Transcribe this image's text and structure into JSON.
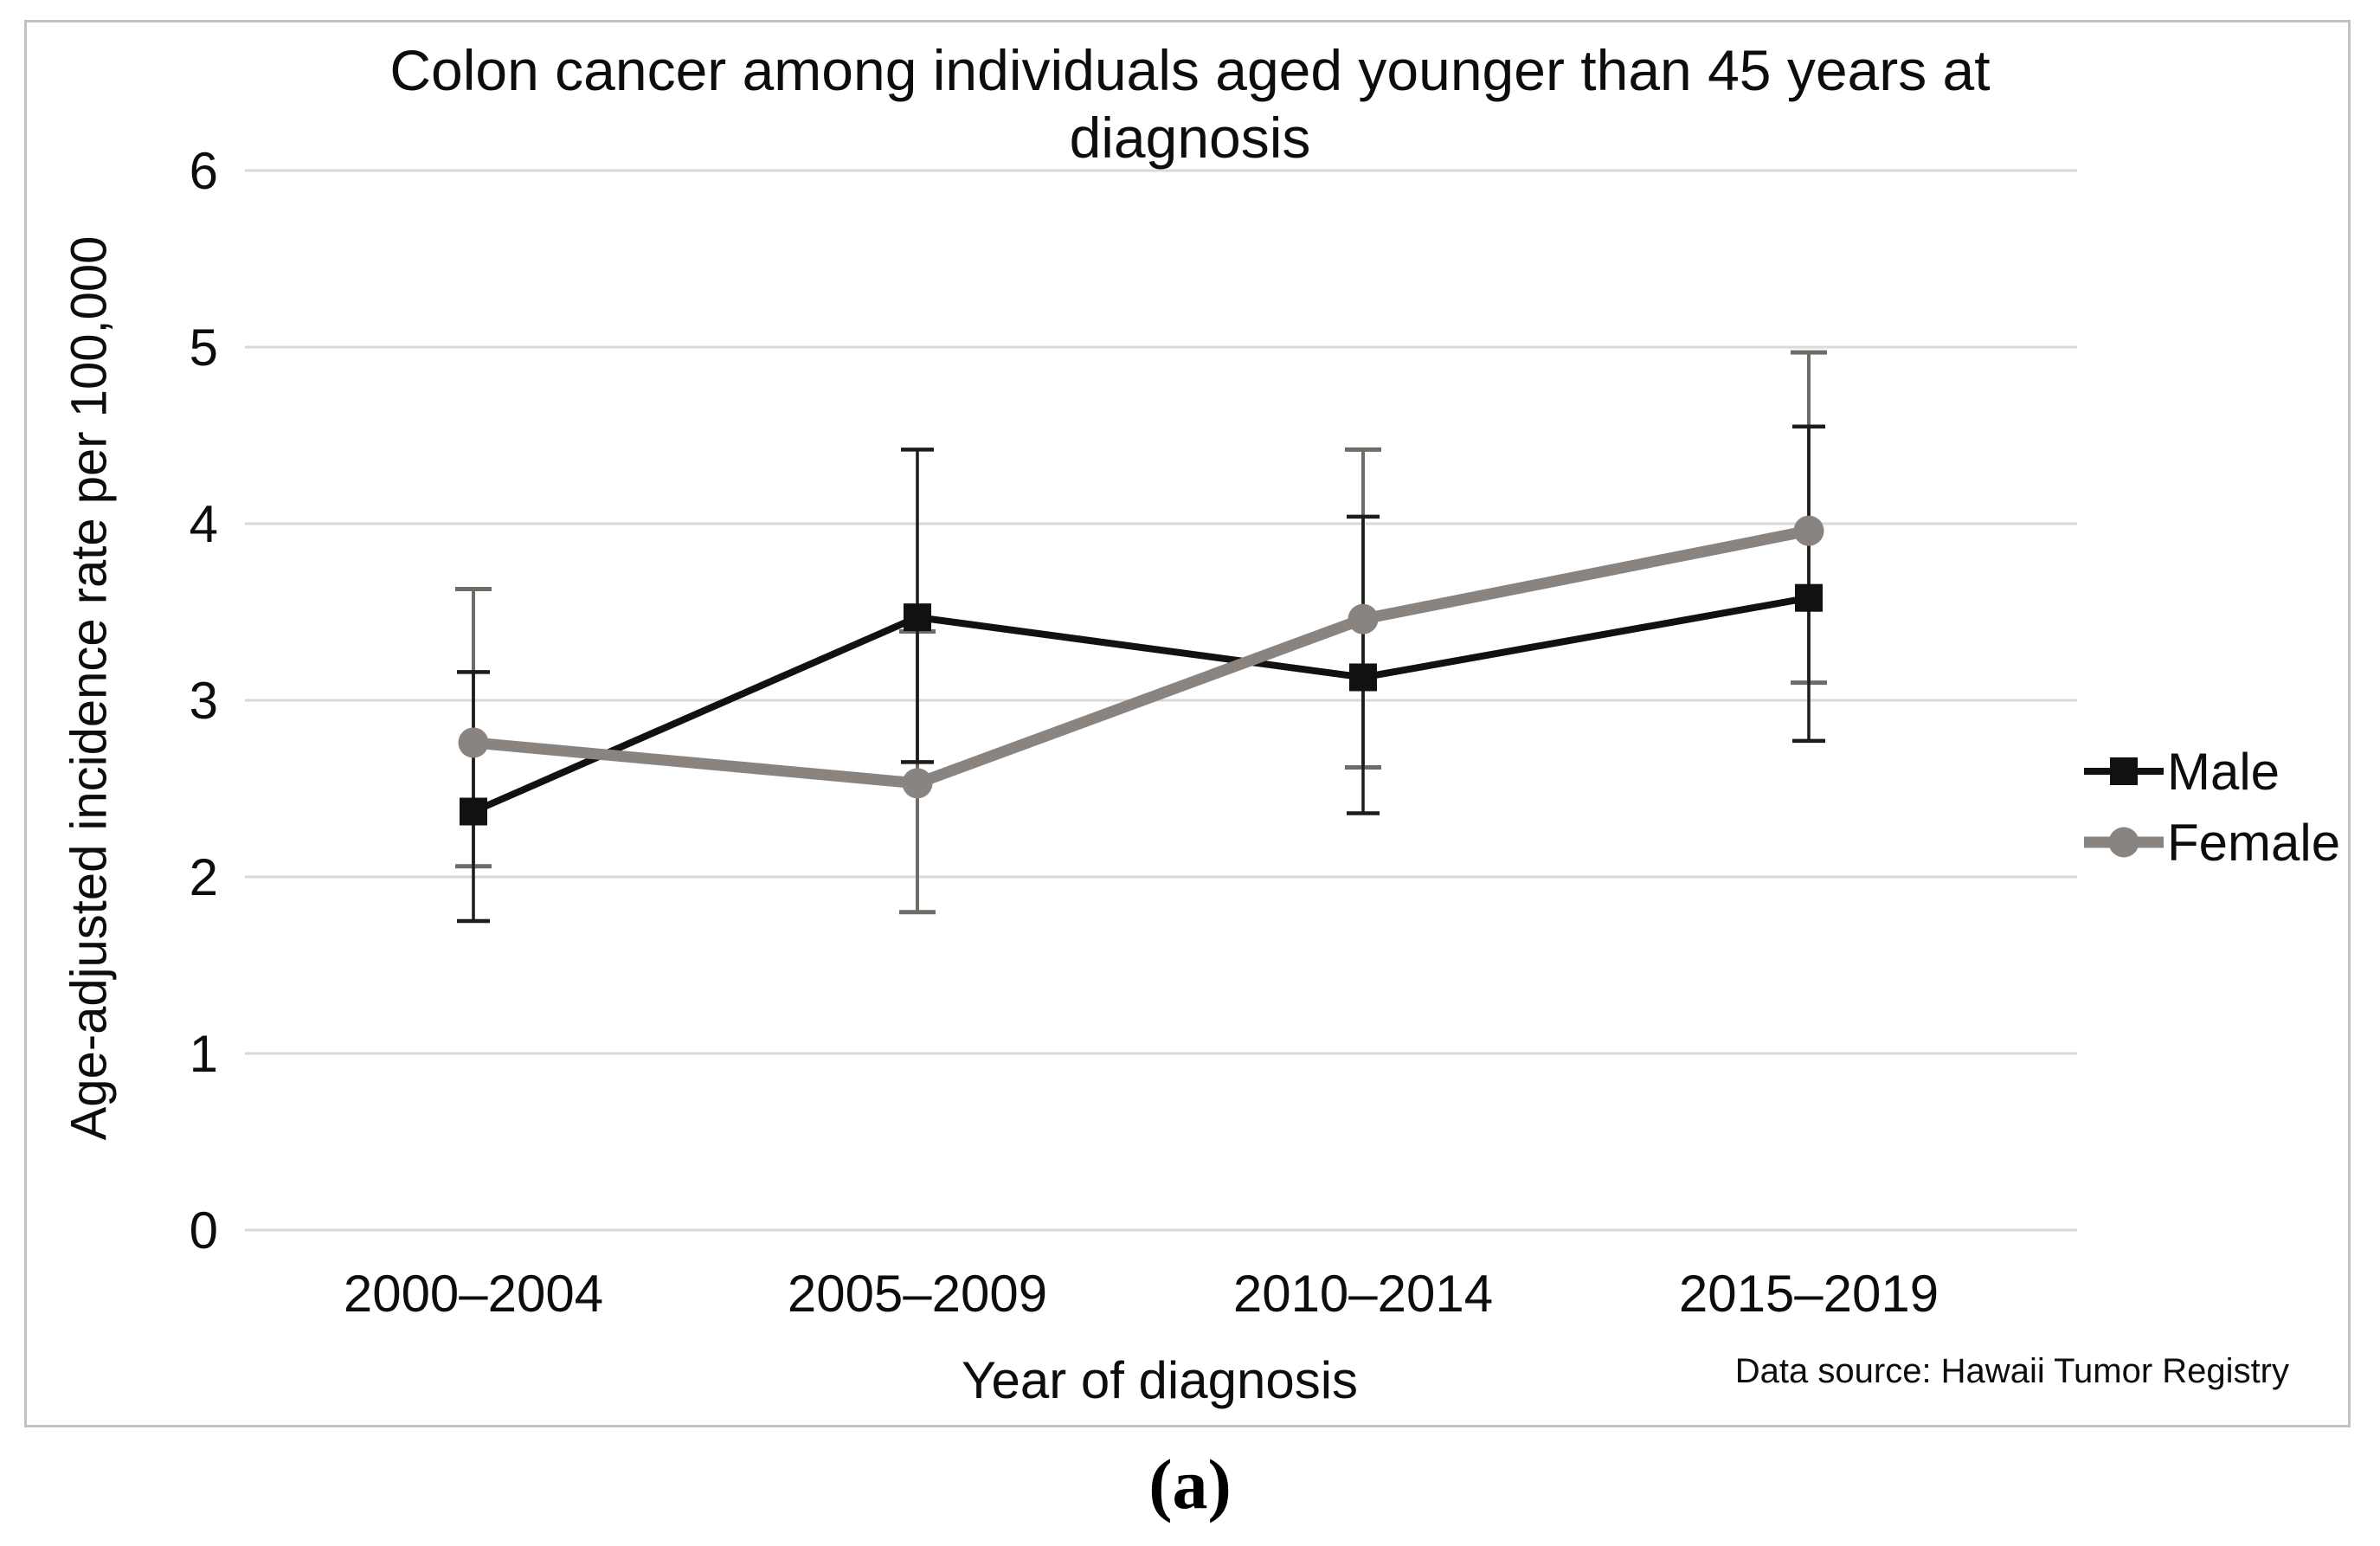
{
  "figure": {
    "title_line1": "Colon cancer among individuals aged younger than 45 years at",
    "title_line2": "diagnosis",
    "caption": "(a)",
    "data_source": "Data source: Hawaii Tumor Registry"
  },
  "axes": {
    "y_label": "Age-adjusted incidence rate per 100,000",
    "x_label": "Year of diagnosis",
    "y_ticks": [
      "0",
      "1",
      "2",
      "3",
      "4",
      "5",
      "6"
    ],
    "x_ticks": [
      "2000–2004",
      "2005–2009",
      "2010–2014",
      "2015–2019"
    ]
  },
  "colors": {
    "male": "#111111",
    "female": "#8a8480",
    "male_error_bar": "#1c1c1c",
    "female_error_bar": "#6f6b67",
    "gridline": "#d9d9d9",
    "frame_border": "#c2c2c2"
  },
  "chart_data": {
    "type": "line",
    "title": "Colon cancer among individuals aged younger than 45 years at diagnosis",
    "xlabel": "Year of diagnosis",
    "ylabel": "Age-adjusted incidence rate per 100,000",
    "ylim": [
      0,
      6
    ],
    "y_tick_step": 1,
    "grid": true,
    "error_bars": true,
    "legend_position": "right",
    "categories": [
      "2000–2004",
      "2005–2009",
      "2010–2014",
      "2015–2019"
    ],
    "series": [
      {
        "name": "Male",
        "marker": "square",
        "color": "#111111",
        "values": [
          2.37,
          3.47,
          3.13,
          3.58
        ],
        "ci_low": [
          1.75,
          2.65,
          2.36,
          2.77
        ],
        "ci_high": [
          3.16,
          4.42,
          4.04,
          4.55
        ]
      },
      {
        "name": "Female",
        "marker": "circle",
        "color": "#8a8480",
        "values": [
          2.76,
          2.53,
          3.46,
          3.96
        ],
        "ci_low": [
          2.06,
          1.8,
          2.62,
          3.1
        ],
        "ci_high": [
          3.63,
          3.39,
          4.42,
          4.97
        ]
      }
    ],
    "annotations": [
      "Data source: Hawaii Tumor Registry"
    ]
  }
}
